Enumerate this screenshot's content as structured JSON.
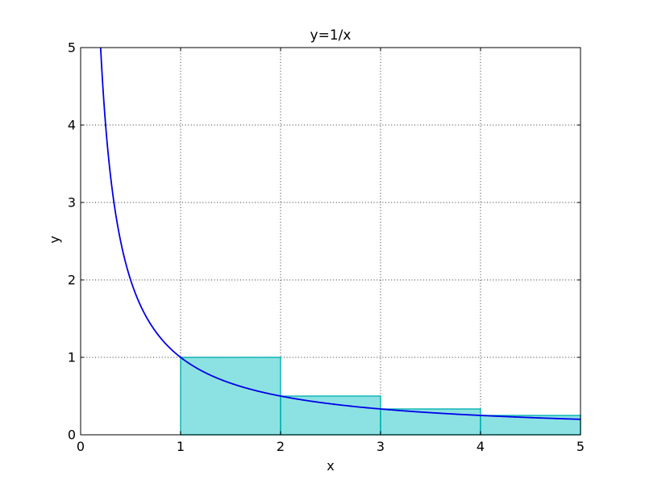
{
  "figure": {
    "background": "#ffffff",
    "axis_color": "#000000",
    "grid_color": "#000000",
    "text_color": "#000000"
  },
  "chart_data": {
    "type": "line",
    "title": "y=1/x",
    "xlabel": "x",
    "ylabel": "y",
    "xlim": [
      0,
      5
    ],
    "ylim": [
      0,
      5
    ],
    "xticks": [
      0,
      1,
      2,
      3,
      4,
      5
    ],
    "yticks": [
      0,
      1,
      2,
      3,
      4,
      5
    ],
    "grid": true,
    "grid_style": "dotted",
    "legend": "none",
    "series": [
      {
        "name": "y=1/x",
        "function": "reciprocal",
        "x_start": 0.2,
        "x_end": 5,
        "sample_step": 0.01,
        "color": "#0000e8",
        "linewidth": 1.8
      }
    ],
    "riemann_bars": {
      "rule": "left-endpoint",
      "intervals": [
        [
          1,
          2
        ],
        [
          2,
          3
        ],
        [
          3,
          4
        ],
        [
          4,
          5
        ]
      ],
      "heights": [
        1,
        0.5,
        0.3333333,
        0.25
      ],
      "fill": "rgba(0,191,191,0.45)",
      "edge": "rgba(0,175,175,0.9)",
      "edge_width": 1.5
    }
  }
}
